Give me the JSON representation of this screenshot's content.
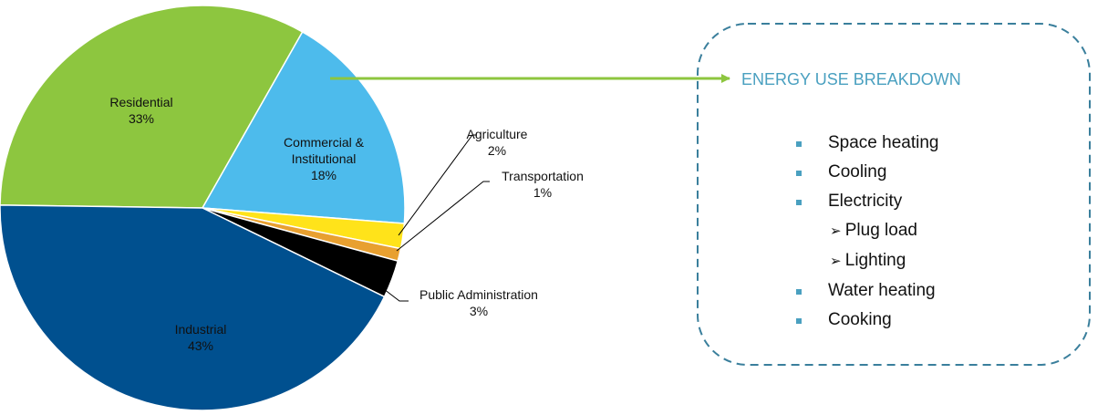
{
  "chart_data": {
    "type": "pie",
    "categories": [
      "Residential",
      "Commercial & Institutional",
      "Agriculture",
      "Transportation",
      "Public Administration",
      "Industrial"
    ],
    "values": [
      33,
      18,
      2,
      1,
      3,
      43
    ],
    "value_labels": [
      "33%",
      "18%",
      "2%",
      "1%",
      "3%",
      "43%"
    ],
    "colors": [
      "#8dc63f",
      "#4dbbec",
      "#ffe31a",
      "#e8a030",
      "#000000",
      "#00508f"
    ]
  },
  "annotation": {
    "title": "ENERGY USE BREAKDOWN",
    "items": [
      {
        "label": "Space heating"
      },
      {
        "label": "Cooling"
      },
      {
        "label": "Electricity",
        "subitems": [
          "Plug load",
          "Lighting"
        ]
      },
      {
        "label": "Water heating"
      },
      {
        "label": "Cooking"
      }
    ]
  }
}
